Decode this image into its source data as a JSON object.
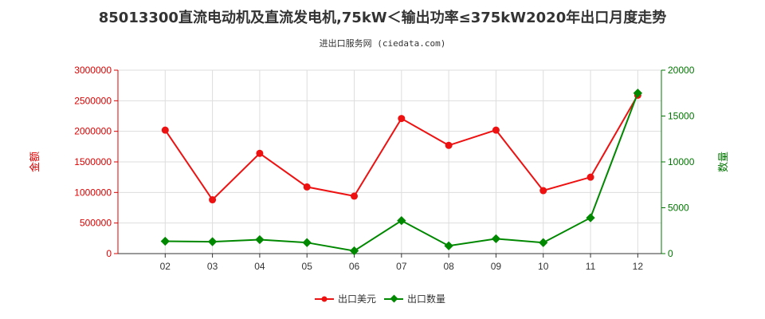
{
  "chart_data": {
    "type": "line",
    "title": "85013300直流电动机及直流发电机,75kW＜输出功率≤375kW2020年出口月度走势",
    "subtitle": "进出口服务网 (ciedata.com)",
    "categories": [
      "02",
      "03",
      "04",
      "05",
      "06",
      "07",
      "08",
      "09",
      "10",
      "11",
      "12"
    ],
    "y_left": {
      "label": "金额",
      "ylim": [
        0,
        3000000
      ],
      "ticks": [
        0,
        500000,
        1000000,
        1500000,
        2000000,
        2500000,
        3000000
      ],
      "color": "#dd0000"
    },
    "y_right": {
      "label": "数量",
      "ylim": [
        0,
        20000
      ],
      "ticks": [
        0,
        5000,
        10000,
        15000,
        20000
      ],
      "color": "#007700"
    },
    "series": [
      {
        "name": "出口美元",
        "axis": "left",
        "color": "#ee1111",
        "values": [
          2020000,
          880000,
          1640000,
          1090000,
          940000,
          2210000,
          1770000,
          2020000,
          1030000,
          1250000,
          2590000
        ]
      },
      {
        "name": "出口数量",
        "axis": "right",
        "color": "#008800",
        "values": [
          1350,
          1300,
          1520,
          1200,
          300,
          3600,
          850,
          1620,
          1200,
          3900,
          17500
        ]
      }
    ],
    "grid": true,
    "legend": "bottom-center"
  }
}
